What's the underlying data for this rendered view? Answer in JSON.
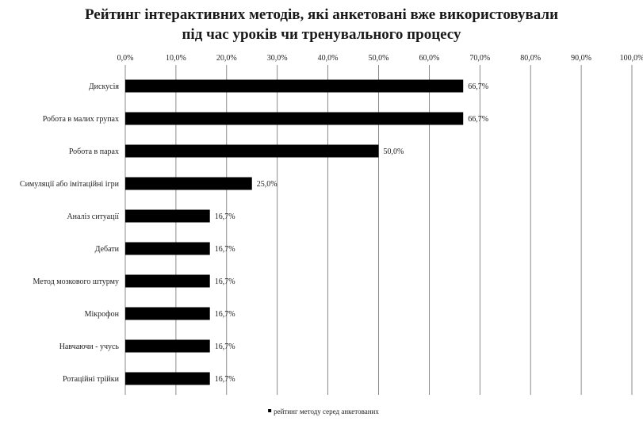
{
  "chart_data": {
    "type": "bar",
    "orientation": "horizontal",
    "title_lines": [
      "Рейтинг інтерактивних методів, які анкетовані вже використовували",
      "під час уроків чи тренувального процесу"
    ],
    "categories": [
      "Дискусія",
      "Робота в малих групах",
      "Робота в парах",
      "Симуляції або імітаційні ігри",
      "Аналіз ситуації",
      "Дебати",
      "Метод мозкового штурму",
      "Мікрофон",
      "Навчаючи - учусь",
      "Ротаційні трійки"
    ],
    "series": [
      {
        "name": "рейтинг методу серед анкетованих",
        "values": [
          66.7,
          66.7,
          50.0,
          25.0,
          16.7,
          16.7,
          16.7,
          16.7,
          16.7,
          16.7
        ],
        "value_labels": [
          "66,7%",
          "66,7%",
          "50,0%",
          "25,0%",
          "16,7%",
          "16,7%",
          "16,7%",
          "16,7%",
          "16,7%",
          "16,7%"
        ],
        "color": "#000000"
      }
    ],
    "x_ticks": [
      "0,0%",
      "10,0%",
      "20,0%",
      "30,0%",
      "40,0%",
      "50,0%",
      "60,0%",
      "70,0%",
      "80,0%",
      "90,0%",
      "100,0%"
    ],
    "xlim": [
      0,
      100
    ],
    "x_axis_position": "top",
    "grid": true,
    "legend_position": "bottom"
  }
}
